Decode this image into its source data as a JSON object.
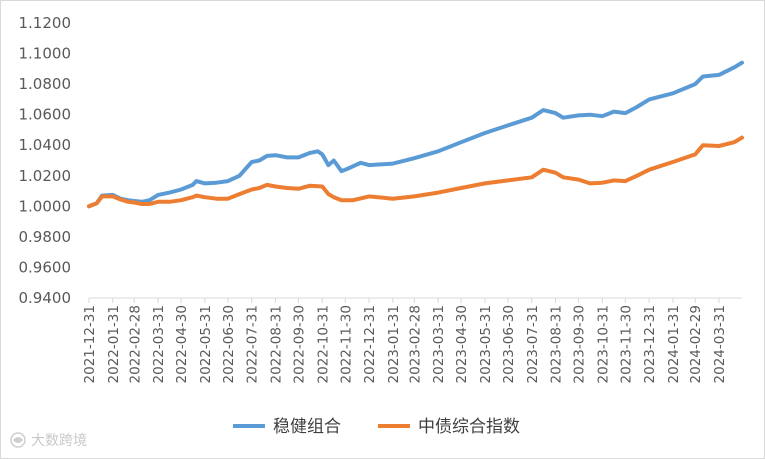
{
  "chart_data": {
    "type": "line",
    "title": "",
    "xlabel": "",
    "ylabel": "",
    "ylim": [
      0.94,
      1.12
    ],
    "y_ticks": [
      "0.9400",
      "0.9600",
      "0.9800",
      "1.0000",
      "1.0200",
      "1.0400",
      "1.0600",
      "1.0800",
      "1.1000",
      "1.1200"
    ],
    "x_tick_labels": [
      "2021-12-31",
      "2022-01-31",
      "2022-02-28",
      "2022-03-31",
      "2022-04-30",
      "2022-05-31",
      "2022-06-30",
      "2022-07-31",
      "2022-08-31",
      "2022-09-30",
      "2022-10-31",
      "2022-11-30",
      "2022-12-31",
      "2023-01-31",
      "2023-02-28",
      "2023-03-31",
      "2023-04-30",
      "2023-05-31",
      "2023-06-30",
      "2023-07-31",
      "2023-08-31",
      "2023-09-30",
      "2023-10-31",
      "2023-11-30",
      "2023-12-31",
      "2024-01-31",
      "2024-02-29",
      "2024-03-31"
    ],
    "x_end": "2024-04-30",
    "grid": false,
    "legend_position": "bottom",
    "series": [
      {
        "name": "稳健组合",
        "color": "#5b9bd5",
        "points": [
          [
            "2021-12-31",
            1.0
          ],
          [
            "2022-01-10",
            1.002
          ],
          [
            "2022-01-17",
            1.007
          ],
          [
            "2022-01-31",
            1.0075
          ],
          [
            "2022-02-10",
            1.005
          ],
          [
            "2022-02-20",
            1.004
          ],
          [
            "2022-02-28",
            1.0035
          ],
          [
            "2022-03-10",
            1.003
          ],
          [
            "2022-03-20",
            1.004
          ],
          [
            "2022-03-31",
            1.0075
          ],
          [
            "2022-04-15",
            1.009
          ],
          [
            "2022-04-30",
            1.011
          ],
          [
            "2022-05-15",
            1.014
          ],
          [
            "2022-05-20",
            1.0165
          ],
          [
            "2022-05-31",
            1.015
          ],
          [
            "2022-06-15",
            1.0155
          ],
          [
            "2022-06-30",
            1.0165
          ],
          [
            "2022-07-15",
            1.02
          ],
          [
            "2022-07-31",
            1.029
          ],
          [
            "2022-08-10",
            1.03
          ],
          [
            "2022-08-20",
            1.033
          ],
          [
            "2022-08-31",
            1.0335
          ],
          [
            "2022-09-15",
            1.032
          ],
          [
            "2022-09-30",
            1.032
          ],
          [
            "2022-10-15",
            1.035
          ],
          [
            "2022-10-25",
            1.036
          ],
          [
            "2022-10-31",
            1.034
          ],
          [
            "2022-11-08",
            1.027
          ],
          [
            "2022-11-15",
            1.03
          ],
          [
            "2022-11-25",
            1.023
          ],
          [
            "2022-12-05",
            1.025
          ],
          [
            "2022-12-20",
            1.0285
          ],
          [
            "2022-12-31",
            1.027
          ],
          [
            "2023-01-31",
            1.028
          ],
          [
            "2023-02-28",
            1.0315
          ],
          [
            "2023-03-31",
            1.036
          ],
          [
            "2023-04-30",
            1.042
          ],
          [
            "2023-05-31",
            1.048
          ],
          [
            "2023-06-30",
            1.053
          ],
          [
            "2023-07-31",
            1.058
          ],
          [
            "2023-08-15",
            1.063
          ],
          [
            "2023-08-31",
            1.061
          ],
          [
            "2023-09-10",
            1.058
          ],
          [
            "2023-09-30",
            1.0595
          ],
          [
            "2023-10-15",
            1.06
          ],
          [
            "2023-10-31",
            1.059
          ],
          [
            "2023-11-15",
            1.062
          ],
          [
            "2023-11-30",
            1.061
          ],
          [
            "2023-12-15",
            1.065
          ],
          [
            "2023-12-31",
            1.07
          ],
          [
            "2024-01-31",
            1.074
          ],
          [
            "2024-02-29",
            1.08
          ],
          [
            "2024-03-10",
            1.085
          ],
          [
            "2024-03-31",
            1.086
          ],
          [
            "2024-04-20",
            1.091
          ],
          [
            "2024-04-30",
            1.094
          ]
        ]
      },
      {
        "name": "中债综合指数",
        "color": "#ed7d31",
        "points": [
          [
            "2021-12-31",
            1.0
          ],
          [
            "2022-01-10",
            1.002
          ],
          [
            "2022-01-17",
            1.0065
          ],
          [
            "2022-01-31",
            1.0065
          ],
          [
            "2022-02-10",
            1.0045
          ],
          [
            "2022-02-20",
            1.003
          ],
          [
            "2022-02-28",
            1.0025
          ],
          [
            "2022-03-10",
            1.0015
          ],
          [
            "2022-03-20",
            1.0015
          ],
          [
            "2022-03-31",
            1.003
          ],
          [
            "2022-04-15",
            1.003
          ],
          [
            "2022-04-30",
            1.004
          ],
          [
            "2022-05-15",
            1.006
          ],
          [
            "2022-05-20",
            1.007
          ],
          [
            "2022-05-31",
            1.006
          ],
          [
            "2022-06-15",
            1.005
          ],
          [
            "2022-06-30",
            1.005
          ],
          [
            "2022-07-15",
            1.008
          ],
          [
            "2022-07-31",
            1.011
          ],
          [
            "2022-08-10",
            1.012
          ],
          [
            "2022-08-20",
            1.014
          ],
          [
            "2022-08-31",
            1.013
          ],
          [
            "2022-09-15",
            1.012
          ],
          [
            "2022-09-30",
            1.0115
          ],
          [
            "2022-10-15",
            1.0135
          ],
          [
            "2022-10-31",
            1.013
          ],
          [
            "2022-11-08",
            1.008
          ],
          [
            "2022-11-15",
            1.006
          ],
          [
            "2022-11-25",
            1.004
          ],
          [
            "2022-12-10",
            1.004
          ],
          [
            "2022-12-31",
            1.0065
          ],
          [
            "2023-01-31",
            1.005
          ],
          [
            "2023-02-28",
            1.0065
          ],
          [
            "2023-03-31",
            1.009
          ],
          [
            "2023-04-30",
            1.012
          ],
          [
            "2023-05-31",
            1.015
          ],
          [
            "2023-06-30",
            1.017
          ],
          [
            "2023-07-31",
            1.019
          ],
          [
            "2023-08-15",
            1.024
          ],
          [
            "2023-08-31",
            1.022
          ],
          [
            "2023-09-10",
            1.019
          ],
          [
            "2023-09-30",
            1.0175
          ],
          [
            "2023-10-15",
            1.015
          ],
          [
            "2023-10-31",
            1.0155
          ],
          [
            "2023-11-15",
            1.017
          ],
          [
            "2023-11-30",
            1.0165
          ],
          [
            "2023-12-15",
            1.02
          ],
          [
            "2023-12-31",
            1.024
          ],
          [
            "2024-01-31",
            1.029
          ],
          [
            "2024-02-29",
            1.034
          ],
          [
            "2024-03-10",
            1.04
          ],
          [
            "2024-03-31",
            1.0395
          ],
          [
            "2024-04-20",
            1.042
          ],
          [
            "2024-04-30",
            1.045
          ]
        ]
      }
    ]
  },
  "watermark": {
    "icon": "watermark-logo-icon",
    "text": "大数跨境"
  }
}
